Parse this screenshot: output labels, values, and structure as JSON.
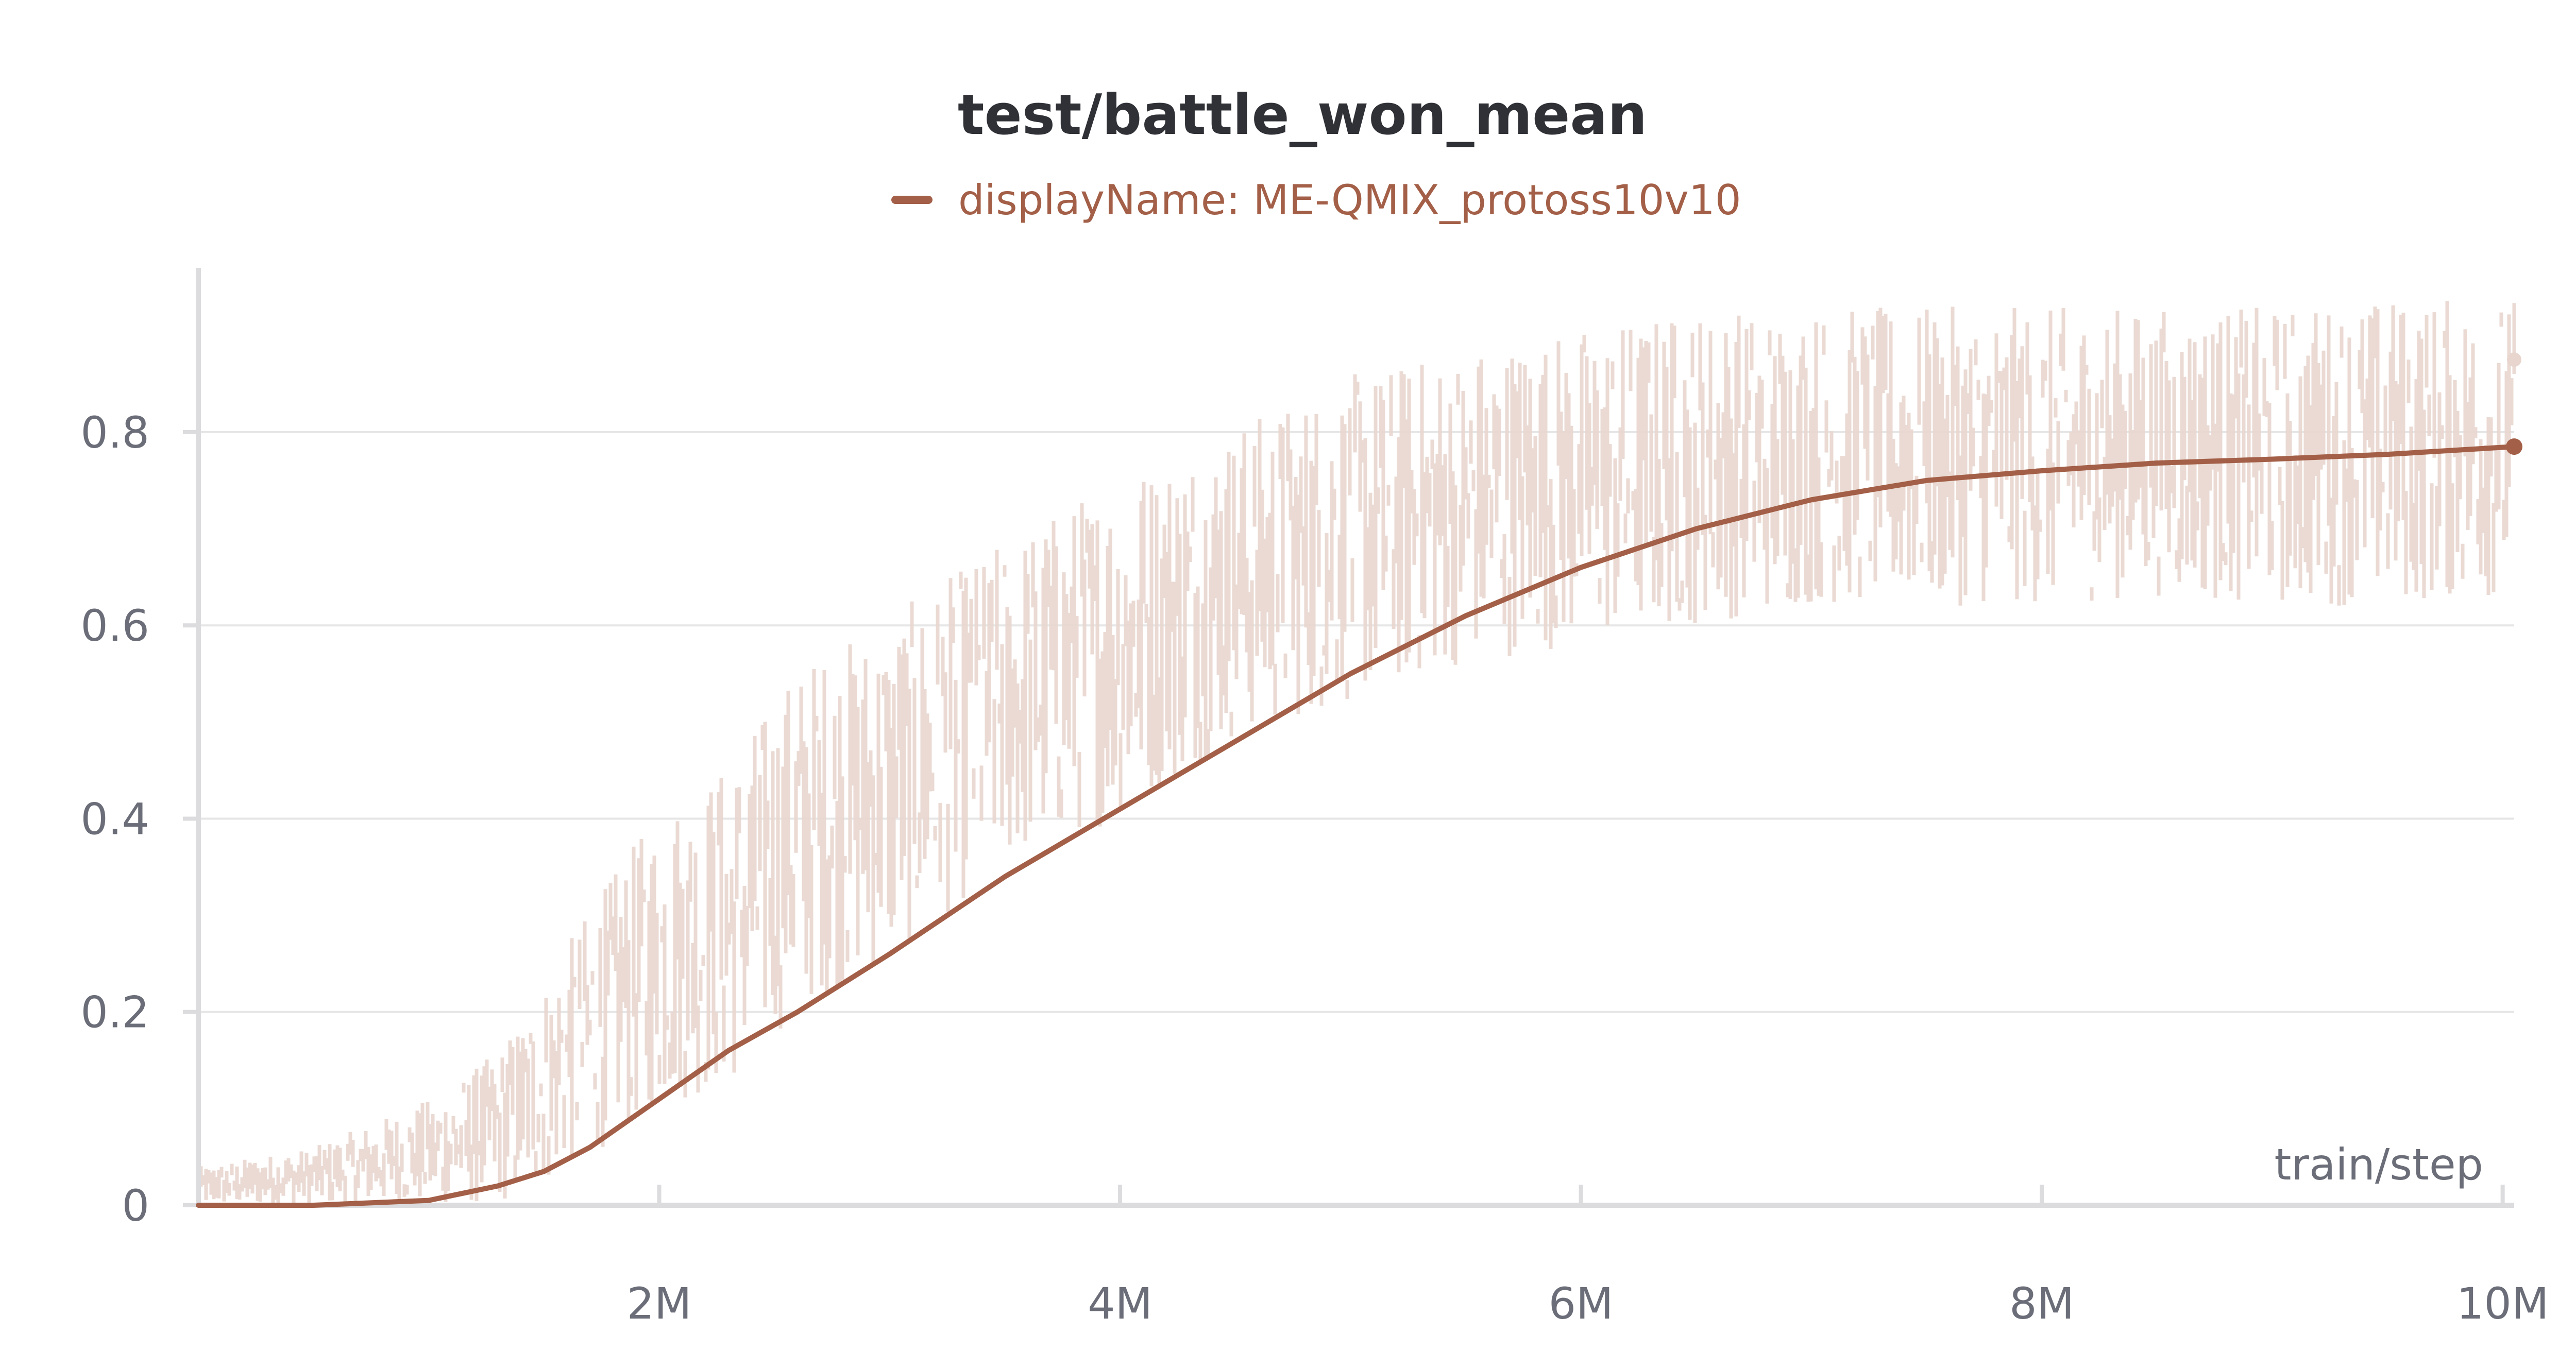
{
  "chart_data": {
    "type": "line",
    "title": "test/battle_won_mean",
    "xlabel": "train/step",
    "ylabel": "",
    "xlim": [
      0,
      10050000
    ],
    "ylim": [
      0,
      0.97
    ],
    "x_ticks": [
      2000000,
      4000000,
      6000000,
      8000000,
      10000000
    ],
    "x_tick_labels": [
      "2M",
      "4M",
      "6M",
      "8M",
      "10M"
    ],
    "y_ticks": [
      0,
      0.2,
      0.4,
      0.6,
      0.8
    ],
    "y_tick_labels": [
      "0",
      "0.2",
      "0.4",
      "0.6",
      "0.8"
    ],
    "grid": true,
    "legend_position": "top-center",
    "colors": {
      "series": "#a35f47",
      "raw": "#e8d6ce",
      "grid": "#e6e6e6",
      "axis": "#dcdcde",
      "text": "#6b6e78",
      "title": "#2f3136"
    },
    "series": [
      {
        "name": "displayName: ME-QMIX_protoss10v10",
        "smoothed": {
          "x": [
            0,
            500000,
            1000000,
            1300000,
            1500000,
            1700000,
            2000000,
            2300000,
            2600000,
            3000000,
            3500000,
            4000000,
            4500000,
            5000000,
            5500000,
            6000000,
            6500000,
            7000000,
            7500000,
            8000000,
            8500000,
            9000000,
            9500000,
            10050000
          ],
          "y": [
            0.0,
            0.0,
            0.005,
            0.02,
            0.035,
            0.06,
            0.11,
            0.16,
            0.2,
            0.26,
            0.34,
            0.41,
            0.48,
            0.55,
            0.61,
            0.66,
            0.7,
            0.73,
            0.75,
            0.76,
            0.768,
            0.772,
            0.777,
            0.785
          ]
        },
        "raw_envelope": {
          "x": [
            0,
            500000,
            1000000,
            1300000,
            1500000,
            1700000,
            2000000,
            2300000,
            2600000,
            3000000,
            3500000,
            4000000,
            4500000,
            5000000,
            5500000,
            6000000,
            6500000,
            7000000,
            7500000,
            8000000,
            8500000,
            9000000,
            9500000,
            10050000
          ],
          "low": [
            0.0,
            0.0,
            0.0,
            0.0,
            0.02,
            0.05,
            0.1,
            0.12,
            0.2,
            0.25,
            0.35,
            0.4,
            0.48,
            0.52,
            0.56,
            0.58,
            0.6,
            0.62,
            0.62,
            0.62,
            0.63,
            0.62,
            0.62,
            0.63
          ],
          "high": [
            0.03,
            0.05,
            0.1,
            0.15,
            0.22,
            0.3,
            0.4,
            0.45,
            0.55,
            0.6,
            0.68,
            0.75,
            0.8,
            0.85,
            0.88,
            0.9,
            0.92,
            0.92,
            0.92,
            0.92,
            0.92,
            0.92,
            0.93,
            0.93
          ]
        },
        "last_point": {
          "x": 10050000,
          "y": 0.785
        },
        "last_raw_point": {
          "x": 10050000,
          "y": 0.875
        }
      }
    ]
  }
}
